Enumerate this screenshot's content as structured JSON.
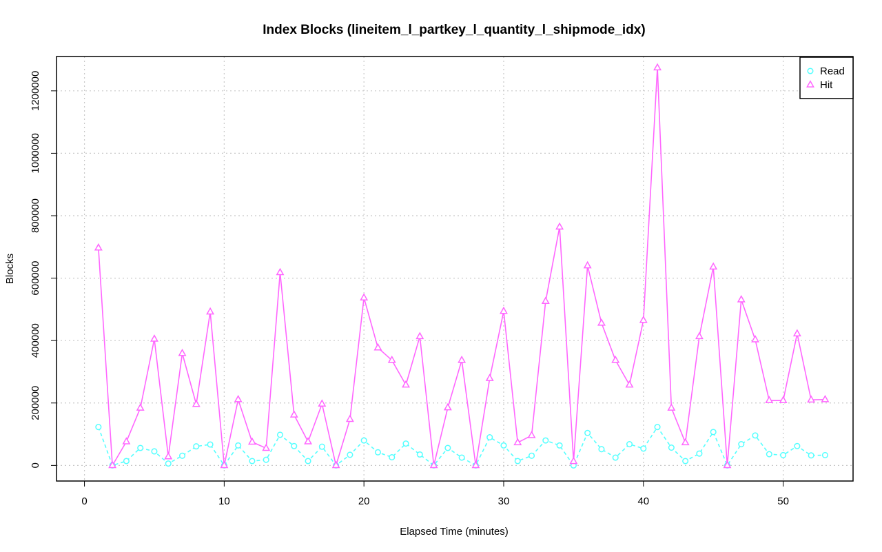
{
  "chart_data": {
    "type": "line",
    "title": "Index Blocks (lineitem_l_partkey_l_quantity_l_shipmode_idx)",
    "xlabel": "Elapsed Time (minutes)",
    "ylabel": "Blocks",
    "xlim": [
      -2,
      55
    ],
    "ylim": [
      -50000,
      1310000
    ],
    "xticks": [
      0,
      10,
      20,
      30,
      40,
      50
    ],
    "yticks": [
      0,
      200000,
      400000,
      600000,
      800000,
      1000000,
      1200000
    ],
    "grid": true,
    "legend_position": "top-right",
    "x": [
      1,
      2,
      3,
      4,
      5,
      6,
      7,
      8,
      9,
      10,
      11,
      12,
      13,
      14,
      15,
      16,
      17,
      18,
      19,
      20,
      21,
      22,
      23,
      24,
      25,
      26,
      27,
      28,
      29,
      30,
      31,
      32,
      33,
      34,
      35,
      36,
      37,
      38,
      39,
      40,
      41,
      42,
      43,
      44,
      45,
      46,
      47,
      48,
      49,
      50,
      51,
      52,
      53
    ],
    "series": [
      {
        "name": "Read",
        "color": "#55ffff",
        "marker": "circle",
        "line_style": "dashed",
        "values": [
          123000,
          0,
          14000,
          56000,
          45000,
          6000,
          31000,
          61000,
          67000,
          0,
          64000,
          14000,
          18000,
          98000,
          62000,
          14000,
          60000,
          0,
          34000,
          80000,
          42000,
          26000,
          70000,
          35000,
          0,
          56000,
          25000,
          0,
          90000,
          64000,
          14000,
          31000,
          80000,
          64000,
          0,
          104000,
          52000,
          25000,
          68000,
          54000,
          123000,
          57000,
          14000,
          38000,
          107000,
          0,
          68000,
          96000,
          36000,
          33000,
          62000,
          32000,
          33000
        ]
      },
      {
        "name": "Hit",
        "color": "#ff66ff",
        "marker": "triangle",
        "line_style": "solid",
        "values": [
          697000,
          0,
          76000,
          184000,
          405000,
          28000,
          359000,
          196000,
          492000,
          0,
          211000,
          75000,
          55000,
          618000,
          162000,
          76000,
          197000,
          0,
          148000,
          537000,
          377000,
          337000,
          258000,
          413000,
          0,
          185000,
          337000,
          0,
          279000,
          494000,
          73000,
          96000,
          526000,
          764000,
          13000,
          640000,
          456000,
          337000,
          258000,
          465000,
          1274000,
          184000,
          73000,
          413000,
          636000,
          0,
          531000,
          403000,
          208000,
          208000,
          422000,
          210000,
          211000
        ]
      }
    ]
  }
}
